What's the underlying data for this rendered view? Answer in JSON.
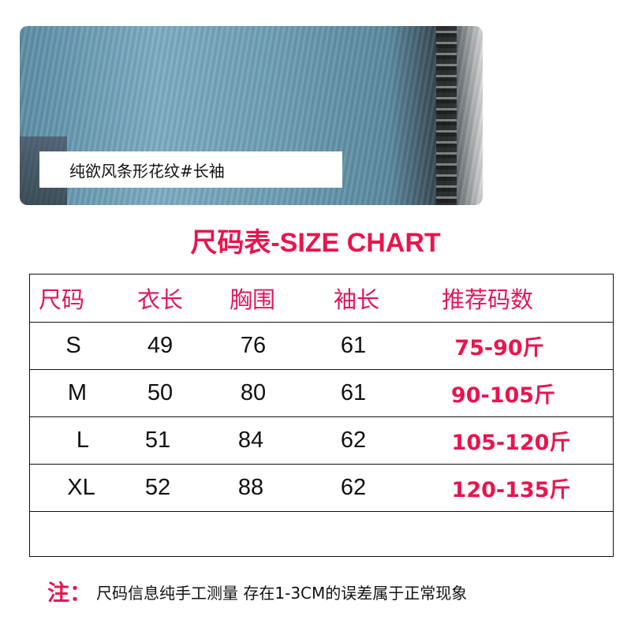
{
  "photo": {
    "caption": "纯欲风条形花纹#长袖"
  },
  "title": "尺码表-SIZE CHART",
  "table": {
    "headers": [
      "尺码",
      "衣长",
      "胸围",
      "袖长",
      "推荐码数"
    ],
    "rows": [
      [
        "S",
        "49",
        "76",
        "61",
        "75-90斤"
      ],
      [
        "M",
        "50",
        "80",
        "61",
        "90-105斤"
      ],
      [
        "L",
        "51",
        "84",
        "62",
        "105-120斤"
      ],
      [
        "XL",
        "52",
        "88",
        "62",
        "120-135斤"
      ]
    ]
  },
  "note": {
    "label": "注：",
    "text": "尺码信息纯手工测量 存在1-3CM的误差属于正常现象"
  },
  "colors": {
    "accent": "#e8154f",
    "text": "#111111"
  }
}
